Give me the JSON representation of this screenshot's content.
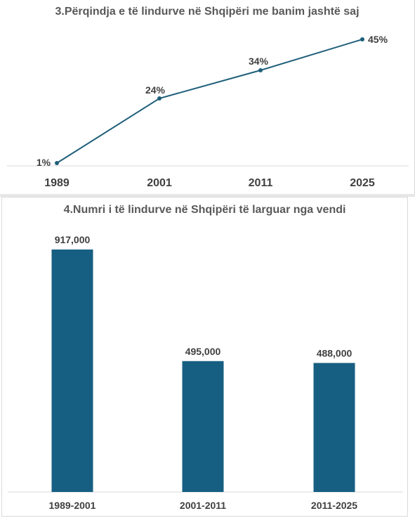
{
  "charts": [
    {
      "title": "3.Përqindja e të lindurve në Shqipëri me banim jashtë saj"
    },
    {
      "title": "4.Numri i të lindurve në Shqipëri të larguar nga vendi"
    }
  ],
  "colors": {
    "line": "#1f5f7a",
    "bar": "#175f82",
    "text": "#404040",
    "title": "#595959",
    "axis": "#d9d9d9"
  },
  "chart_data": [
    {
      "type": "line",
      "title": "3.Përqindja e të lindurve në Shqipëri me banim jashtë saj",
      "categories": [
        "1989",
        "2001",
        "2011",
        "2025"
      ],
      "values": [
        1,
        24,
        34,
        45
      ],
      "data_labels": [
        "1%",
        "24%",
        "34%",
        "45%"
      ],
      "ylim": [
        0,
        50
      ],
      "grid": false,
      "legend": "none"
    },
    {
      "type": "bar",
      "title": "4.Numri i të lindurve në Shqipëri të larguar nga vendi",
      "categories": [
        "1989-2001",
        "2001-2011",
        "2011-2025"
      ],
      "values": [
        917000,
        495000,
        488000
      ],
      "data_labels": [
        "917,000",
        "495,000",
        "488,000"
      ],
      "ylim": [
        0,
        1000000
      ],
      "grid": false,
      "legend": "none"
    }
  ]
}
